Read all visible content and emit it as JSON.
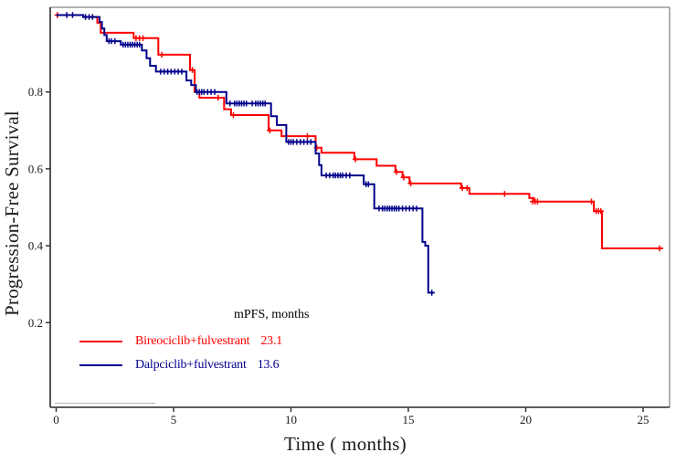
{
  "figure": {
    "xlabel": "Time ( months)",
    "ylabel": "Progression-Free Survival"
  },
  "legend": {
    "header": "mPFS, months",
    "items": [
      {
        "label": "Bireociclib+fulvestrant",
        "value": "23.1",
        "color": "#fe0000"
      },
      {
        "label": "Dalpciclib+fulvestrant",
        "value": "13.6",
        "color": "#00008b"
      }
    ]
  },
  "chart_data": {
    "type": "line",
    "subtype": "kaplan-meier-step",
    "title": "",
    "xlabel": "Time ( months)",
    "ylabel": "Progression-Free Survival",
    "xlim": [
      0,
      26
    ],
    "ylim": [
      0,
      1.0
    ],
    "x_ticks": [
      0,
      5,
      10,
      15,
      20,
      25
    ],
    "y_ticks": [
      0.2,
      0.4,
      0.6,
      0.8
    ],
    "grid": false,
    "legend_position": "inside-bottom-left",
    "axis_colors": {
      "spine": "#2a2a2a",
      "box": "#999999",
      "text": "#1a1a1a"
    },
    "series": [
      {
        "name": "Bireociclib+fulvestrant",
        "median_pfs_months": 23.1,
        "color": "#fe0000",
        "end_t": 25.85,
        "steps": [
          [
            0,
            1.0
          ],
          [
            1.15,
            0.995
          ],
          [
            1.75,
            0.98
          ],
          [
            1.9,
            0.954
          ],
          [
            3.3,
            0.94
          ],
          [
            4.35,
            0.897
          ],
          [
            5.7,
            0.857
          ],
          [
            5.9,
            0.8
          ],
          [
            6.1,
            0.785
          ],
          [
            7.15,
            0.755
          ],
          [
            7.45,
            0.74
          ],
          [
            9.05,
            0.7
          ],
          [
            9.6,
            0.685
          ],
          [
            11.05,
            0.655
          ],
          [
            11.3,
            0.642
          ],
          [
            12.7,
            0.625
          ],
          [
            13.65,
            0.608
          ],
          [
            14.45,
            0.592
          ],
          [
            14.75,
            0.578
          ],
          [
            15.05,
            0.562
          ],
          [
            17.25,
            0.55
          ],
          [
            17.6,
            0.535
          ],
          [
            20.15,
            0.524
          ],
          [
            20.35,
            0.515
          ],
          [
            22.9,
            0.49
          ],
          [
            23.25,
            0.393
          ]
        ],
        "censors": [
          [
            0.05,
            1.0
          ],
          [
            3.4,
            0.94
          ],
          [
            3.55,
            0.94
          ],
          [
            3.7,
            0.94
          ],
          [
            4.5,
            0.897
          ],
          [
            5.8,
            0.857
          ],
          [
            6.9,
            0.785
          ],
          [
            7.55,
            0.74
          ],
          [
            9.1,
            0.7
          ],
          [
            10.7,
            0.685
          ],
          [
            11.1,
            0.655
          ],
          [
            12.75,
            0.625
          ],
          [
            14.5,
            0.592
          ],
          [
            14.8,
            0.578
          ],
          [
            15.1,
            0.562
          ],
          [
            17.3,
            0.55
          ],
          [
            17.5,
            0.55
          ],
          [
            19.1,
            0.535
          ],
          [
            20.3,
            0.515
          ],
          [
            20.4,
            0.515
          ],
          [
            20.5,
            0.515
          ],
          [
            22.8,
            0.515
          ],
          [
            23.0,
            0.49
          ],
          [
            23.1,
            0.49
          ],
          [
            23.2,
            0.49
          ],
          [
            25.7,
            0.393
          ]
        ]
      },
      {
        "name": "Dalpciclib+fulvestrant",
        "median_pfs_months": 13.6,
        "color": "#00008b",
        "end_t": 16.1,
        "steps": [
          [
            0,
            1.0
          ],
          [
            1.15,
            0.995
          ],
          [
            1.85,
            0.982
          ],
          [
            1.95,
            0.965
          ],
          [
            2.05,
            0.948
          ],
          [
            2.15,
            0.932
          ],
          [
            2.75,
            0.923
          ],
          [
            3.65,
            0.908
          ],
          [
            3.85,
            0.888
          ],
          [
            4.0,
            0.868
          ],
          [
            4.25,
            0.853
          ],
          [
            5.55,
            0.83
          ],
          [
            5.75,
            0.818
          ],
          [
            5.95,
            0.8
          ],
          [
            7.25,
            0.77
          ],
          [
            9.15,
            0.737
          ],
          [
            9.4,
            0.714
          ],
          [
            9.8,
            0.67
          ],
          [
            11.05,
            0.64
          ],
          [
            11.2,
            0.61
          ],
          [
            11.3,
            0.583
          ],
          [
            13.1,
            0.56
          ],
          [
            13.55,
            0.497
          ],
          [
            15.6,
            0.41
          ],
          [
            15.72,
            0.4
          ],
          [
            15.85,
            0.278
          ]
        ],
        "censors": [
          [
            0.45,
            1.0
          ],
          [
            0.7,
            1.0
          ],
          [
            1.25,
            0.995
          ],
          [
            1.4,
            0.995
          ],
          [
            1.55,
            0.995
          ],
          [
            2.25,
            0.932
          ],
          [
            2.35,
            0.932
          ],
          [
            2.5,
            0.932
          ],
          [
            2.85,
            0.923
          ],
          [
            2.95,
            0.923
          ],
          [
            3.05,
            0.923
          ],
          [
            3.15,
            0.923
          ],
          [
            3.25,
            0.923
          ],
          [
            3.35,
            0.923
          ],
          [
            3.45,
            0.923
          ],
          [
            3.55,
            0.923
          ],
          [
            4.45,
            0.853
          ],
          [
            4.6,
            0.853
          ],
          [
            4.75,
            0.853
          ],
          [
            4.9,
            0.853
          ],
          [
            5.05,
            0.853
          ],
          [
            5.2,
            0.853
          ],
          [
            5.35,
            0.853
          ],
          [
            6.0,
            0.8
          ],
          [
            6.1,
            0.8
          ],
          [
            6.2,
            0.8
          ],
          [
            6.3,
            0.8
          ],
          [
            6.45,
            0.8
          ],
          [
            6.6,
            0.8
          ],
          [
            6.75,
            0.8
          ],
          [
            7.4,
            0.77
          ],
          [
            7.6,
            0.77
          ],
          [
            7.7,
            0.77
          ],
          [
            7.8,
            0.77
          ],
          [
            7.9,
            0.77
          ],
          [
            8.0,
            0.77
          ],
          [
            8.1,
            0.77
          ],
          [
            8.35,
            0.77
          ],
          [
            8.5,
            0.77
          ],
          [
            8.6,
            0.77
          ],
          [
            8.7,
            0.77
          ],
          [
            8.8,
            0.77
          ],
          [
            8.9,
            0.77
          ],
          [
            9.9,
            0.67
          ],
          [
            10.0,
            0.67
          ],
          [
            10.1,
            0.67
          ],
          [
            10.25,
            0.67
          ],
          [
            10.4,
            0.67
          ],
          [
            10.55,
            0.67
          ],
          [
            10.7,
            0.67
          ],
          [
            10.85,
            0.67
          ],
          [
            11.5,
            0.583
          ],
          [
            11.65,
            0.583
          ],
          [
            11.8,
            0.583
          ],
          [
            11.9,
            0.583
          ],
          [
            12.0,
            0.583
          ],
          [
            12.1,
            0.583
          ],
          [
            12.2,
            0.583
          ],
          [
            12.35,
            0.583
          ],
          [
            12.5,
            0.583
          ],
          [
            13.2,
            0.56
          ],
          [
            13.3,
            0.56
          ],
          [
            13.75,
            0.497
          ],
          [
            13.9,
            0.497
          ],
          [
            14.0,
            0.497
          ],
          [
            14.1,
            0.497
          ],
          [
            14.2,
            0.497
          ],
          [
            14.3,
            0.497
          ],
          [
            14.4,
            0.497
          ],
          [
            14.5,
            0.497
          ],
          [
            14.6,
            0.497
          ],
          [
            14.75,
            0.497
          ],
          [
            14.9,
            0.497
          ],
          [
            15.05,
            0.497
          ],
          [
            15.2,
            0.497
          ],
          [
            15.35,
            0.497
          ],
          [
            16.0,
            0.278
          ]
        ]
      }
    ]
  }
}
